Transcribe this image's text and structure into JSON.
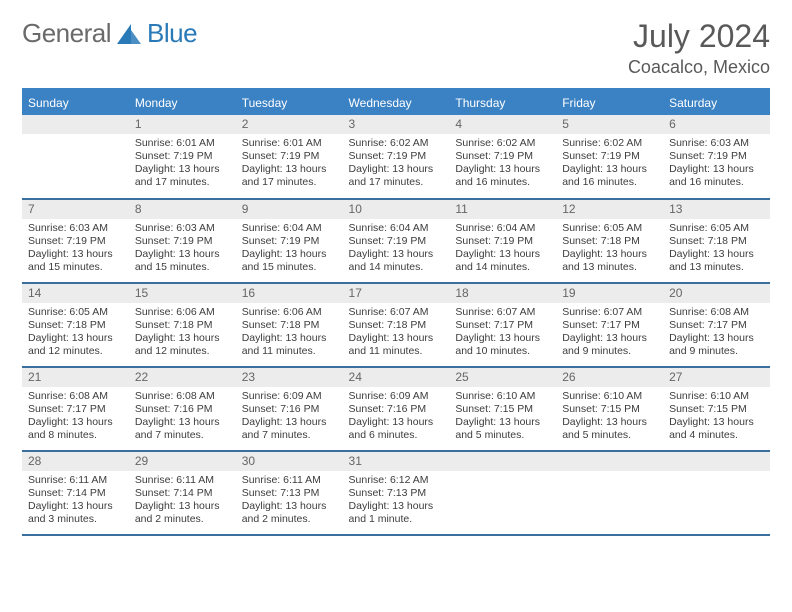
{
  "logo": {
    "text1": "General",
    "text2": "Blue"
  },
  "title": {
    "month": "July 2024",
    "location": "Coacalco, Mexico"
  },
  "colors": {
    "header_bg": "#3b82c4",
    "row_divider": "#3b6f9e",
    "daynum_bg": "#ececec"
  },
  "weekdays": [
    "Sunday",
    "Monday",
    "Tuesday",
    "Wednesday",
    "Thursday",
    "Friday",
    "Saturday"
  ],
  "weeks": [
    [
      null,
      {
        "d": "1",
        "sr": "6:01 AM",
        "ss": "7:19 PM",
        "dl": "13 hours and 17 minutes."
      },
      {
        "d": "2",
        "sr": "6:01 AM",
        "ss": "7:19 PM",
        "dl": "13 hours and 17 minutes."
      },
      {
        "d": "3",
        "sr": "6:02 AM",
        "ss": "7:19 PM",
        "dl": "13 hours and 17 minutes."
      },
      {
        "d": "4",
        "sr": "6:02 AM",
        "ss": "7:19 PM",
        "dl": "13 hours and 16 minutes."
      },
      {
        "d": "5",
        "sr": "6:02 AM",
        "ss": "7:19 PM",
        "dl": "13 hours and 16 minutes."
      },
      {
        "d": "6",
        "sr": "6:03 AM",
        "ss": "7:19 PM",
        "dl": "13 hours and 16 minutes."
      }
    ],
    [
      {
        "d": "7",
        "sr": "6:03 AM",
        "ss": "7:19 PM",
        "dl": "13 hours and 15 minutes."
      },
      {
        "d": "8",
        "sr": "6:03 AM",
        "ss": "7:19 PM",
        "dl": "13 hours and 15 minutes."
      },
      {
        "d": "9",
        "sr": "6:04 AM",
        "ss": "7:19 PM",
        "dl": "13 hours and 15 minutes."
      },
      {
        "d": "10",
        "sr": "6:04 AM",
        "ss": "7:19 PM",
        "dl": "13 hours and 14 minutes."
      },
      {
        "d": "11",
        "sr": "6:04 AM",
        "ss": "7:19 PM",
        "dl": "13 hours and 14 minutes."
      },
      {
        "d": "12",
        "sr": "6:05 AM",
        "ss": "7:18 PM",
        "dl": "13 hours and 13 minutes."
      },
      {
        "d": "13",
        "sr": "6:05 AM",
        "ss": "7:18 PM",
        "dl": "13 hours and 13 minutes."
      }
    ],
    [
      {
        "d": "14",
        "sr": "6:05 AM",
        "ss": "7:18 PM",
        "dl": "13 hours and 12 minutes."
      },
      {
        "d": "15",
        "sr": "6:06 AM",
        "ss": "7:18 PM",
        "dl": "13 hours and 12 minutes."
      },
      {
        "d": "16",
        "sr": "6:06 AM",
        "ss": "7:18 PM",
        "dl": "13 hours and 11 minutes."
      },
      {
        "d": "17",
        "sr": "6:07 AM",
        "ss": "7:18 PM",
        "dl": "13 hours and 11 minutes."
      },
      {
        "d": "18",
        "sr": "6:07 AM",
        "ss": "7:17 PM",
        "dl": "13 hours and 10 minutes."
      },
      {
        "d": "19",
        "sr": "6:07 AM",
        "ss": "7:17 PM",
        "dl": "13 hours and 9 minutes."
      },
      {
        "d": "20",
        "sr": "6:08 AM",
        "ss": "7:17 PM",
        "dl": "13 hours and 9 minutes."
      }
    ],
    [
      {
        "d": "21",
        "sr": "6:08 AM",
        "ss": "7:17 PM",
        "dl": "13 hours and 8 minutes."
      },
      {
        "d": "22",
        "sr": "6:08 AM",
        "ss": "7:16 PM",
        "dl": "13 hours and 7 minutes."
      },
      {
        "d": "23",
        "sr": "6:09 AM",
        "ss": "7:16 PM",
        "dl": "13 hours and 7 minutes."
      },
      {
        "d": "24",
        "sr": "6:09 AM",
        "ss": "7:16 PM",
        "dl": "13 hours and 6 minutes."
      },
      {
        "d": "25",
        "sr": "6:10 AM",
        "ss": "7:15 PM",
        "dl": "13 hours and 5 minutes."
      },
      {
        "d": "26",
        "sr": "6:10 AM",
        "ss": "7:15 PM",
        "dl": "13 hours and 5 minutes."
      },
      {
        "d": "27",
        "sr": "6:10 AM",
        "ss": "7:15 PM",
        "dl": "13 hours and 4 minutes."
      }
    ],
    [
      {
        "d": "28",
        "sr": "6:11 AM",
        "ss": "7:14 PM",
        "dl": "13 hours and 3 minutes."
      },
      {
        "d": "29",
        "sr": "6:11 AM",
        "ss": "7:14 PM",
        "dl": "13 hours and 2 minutes."
      },
      {
        "d": "30",
        "sr": "6:11 AM",
        "ss": "7:13 PM",
        "dl": "13 hours and 2 minutes."
      },
      {
        "d": "31",
        "sr": "6:12 AM",
        "ss": "7:13 PM",
        "dl": "13 hours and 1 minute."
      },
      null,
      null,
      null
    ]
  ],
  "labels": {
    "sunrise": "Sunrise:",
    "sunset": "Sunset:",
    "daylight": "Daylight:"
  }
}
